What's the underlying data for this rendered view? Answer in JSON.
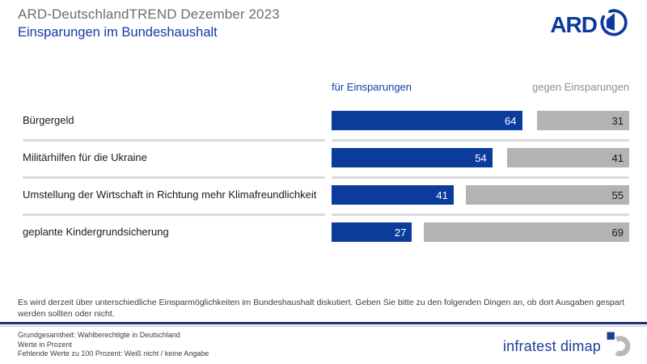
{
  "header": {
    "supertitle": "ARD-DeutschlandTREND Dezember 2023",
    "title": "Einsparungen im Bundeshaushalt",
    "ard_logo_text": "ARD"
  },
  "chart_data": {
    "type": "bar",
    "orientation": "horizontal",
    "title": "Einsparungen im Bundeshaushalt",
    "values_unit": "percent",
    "xlim": [
      0,
      100
    ],
    "categories": [
      "Bürgergeld",
      "Militärhilfen für die Ukraine",
      "Umstellung der Wirtschaft in Richtung mehr Klimafreundlichkeit",
      "geplante Kindergrundsicherung"
    ],
    "series": [
      {
        "name": "für Einsparungen",
        "color": "#0b3c9c",
        "text_color": "#ffffff",
        "values": [
          64,
          54,
          41,
          27
        ]
      },
      {
        "name": "gegen Einsparungen",
        "color": "#b3b3b3",
        "text_color": "#1a1a1a",
        "values": [
          31,
          41,
          55,
          69
        ]
      }
    ],
    "legend_position": "top"
  },
  "footnote": "Es wird derzeit über unterschiedliche Einsparmöglichkeiten im Bundeshaushalt diskutiert. Geben Sie bitte zu den folgenden Dingen an, ob dort Ausgaben gespart werden sollten oder nicht.",
  "footer": {
    "lines": [
      "Grundgesamtheit: Wahlberechtigte in Deutschland",
      "Werte in Prozent",
      "Fehlende Werte zu 100 Prozent: Weiß nicht / keine Angabe"
    ],
    "brand": "infratest dimap"
  },
  "colors": {
    "bar_for": "#0b3c9c",
    "bar_against": "#b3b3b3",
    "title_blue": "#1539ab",
    "supertitle_gray": "#6e6e6e",
    "divider_gray": "#dcdcdc",
    "ard_navy": "#0a3a9d",
    "brand_blue": "#1b3f94",
    "brand_mark_gray": "#b4b9bf"
  }
}
